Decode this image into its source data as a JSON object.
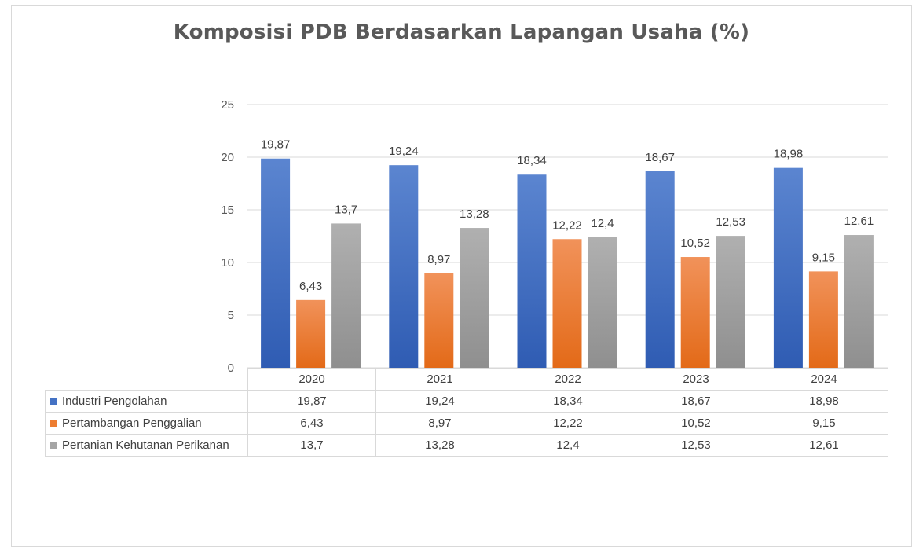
{
  "chart_data": {
    "type": "bar",
    "title": "Komposisi PDB Berdasarkan Lapangan Usaha (%)",
    "categories": [
      "2020",
      "2021",
      "2022",
      "2023",
      "2024"
    ],
    "series": [
      {
        "name": "Industri Pengolahan",
        "values": [
          19.87,
          19.24,
          18.34,
          18.67,
          18.98
        ],
        "labels": [
          "19,87",
          "19,24",
          "18,34",
          "18,67",
          "18,98"
        ],
        "color": "#4472C4",
        "color_light": "#5B85D0",
        "color_dark": "#2F5CB3"
      },
      {
        "name": "Pertambangan Penggalian",
        "values": [
          6.43,
          8.97,
          12.22,
          10.52,
          9.15
        ],
        "labels": [
          "6,43",
          "8,97",
          "12,22",
          "10,52",
          "9,15"
        ],
        "color": "#ED7D31",
        "color_light": "#F1925A",
        "color_dark": "#E36A18"
      },
      {
        "name": "Pertanian Kehutanan Perikanan",
        "values": [
          13.7,
          13.28,
          12.4,
          12.53,
          12.61
        ],
        "labels": [
          "13,7",
          "13,28",
          "12,4",
          "12,53",
          "12,61"
        ],
        "color": "#A5A5A5",
        "color_light": "#B0B0B0",
        "color_dark": "#8F8F8F"
      }
    ],
    "ylim": [
      0,
      25
    ],
    "yticks": [
      "0",
      "5",
      "10",
      "15",
      "20",
      "25"
    ],
    "grid": true,
    "legend": "data-table"
  }
}
